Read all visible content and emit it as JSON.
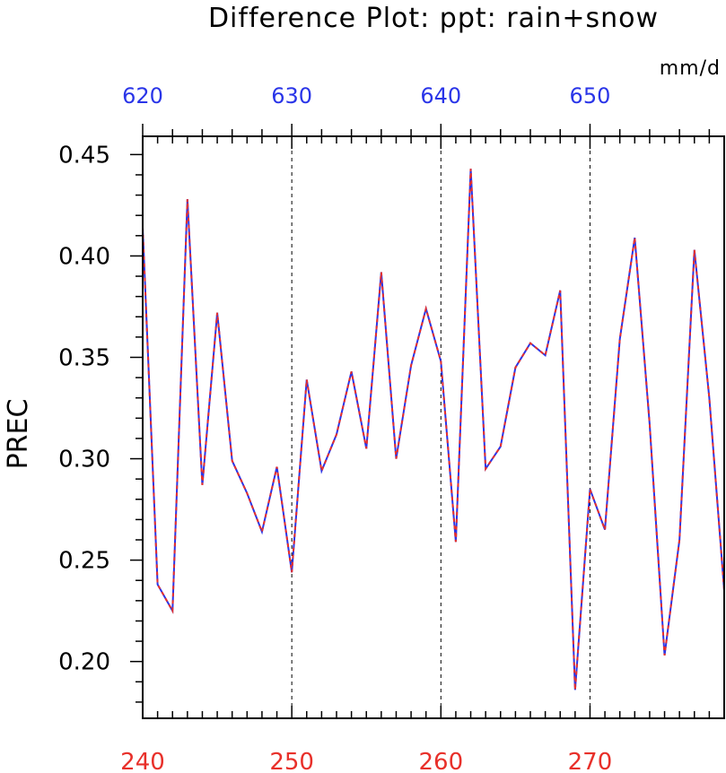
{
  "chart_data": {
    "type": "line",
    "title": "Difference Plot: ppt: rain+snow",
    "units": "mm/d",
    "ylabel": "PREC",
    "xlabel": "",
    "ylim": [
      0.172,
      0.459
    ],
    "xlim": [
      240,
      279
    ],
    "y_ticks": [
      0.2,
      0.25,
      0.3,
      0.35,
      0.4,
      0.45
    ],
    "y_tick_labels": [
      "0.20",
      "0.25",
      "0.30",
      "0.35",
      "0.40",
      "0.45"
    ],
    "x_ticks_bottom": [
      240,
      250,
      260,
      270
    ],
    "x_tick_labels_bottom": [
      "240",
      "250",
      "260",
      "270"
    ],
    "x_ticks_top": [
      620,
      630,
      640,
      650
    ],
    "x_tick_labels_top": [
      "620",
      "630",
      "640",
      "650"
    ],
    "x_top_range": [
      620,
      659
    ],
    "vertical_gridlines": [
      250,
      260,
      270
    ],
    "colors": {
      "bottom_axis": "#e8302a",
      "top_axis": "#2a35e8",
      "series_a": "#2a35e8",
      "series_b": "#e8302a"
    },
    "x": [
      240,
      241,
      242,
      243,
      244,
      245,
      246,
      247,
      248,
      249,
      250,
      251,
      252,
      253,
      254,
      255,
      256,
      257,
      258,
      259,
      260,
      261,
      262,
      263,
      264,
      265,
      266,
      267,
      268,
      269,
      270,
      271,
      272,
      273,
      274,
      275,
      276,
      277,
      278,
      279
    ],
    "series": [
      {
        "values": [
          0.414,
          0.238,
          0.225,
          0.428,
          0.287,
          0.372,
          0.299,
          0.283,
          0.264,
          0.296,
          0.244,
          0.339,
          0.294,
          0.312,
          0.343,
          0.305,
          0.392,
          0.3,
          0.346,
          0.374,
          0.348,
          0.259,
          0.443,
          0.295,
          0.306,
          0.345,
          0.357,
          0.351,
          0.383,
          0.186,
          0.285,
          0.265,
          0.359,
          0.409,
          0.317,
          0.203,
          0.26,
          0.403,
          0.33,
          0.235
        ]
      },
      {
        "values": [
          0.414,
          0.238,
          0.225,
          0.428,
          0.287,
          0.372,
          0.299,
          0.283,
          0.264,
          0.296,
          0.244,
          0.339,
          0.294,
          0.312,
          0.343,
          0.305,
          0.392,
          0.3,
          0.346,
          0.374,
          0.348,
          0.259,
          0.443,
          0.295,
          0.306,
          0.345,
          0.357,
          0.351,
          0.383,
          0.186,
          0.285,
          0.265,
          0.359,
          0.409,
          0.317,
          0.203,
          0.26,
          0.403,
          0.33,
          0.235
        ]
      }
    ]
  }
}
